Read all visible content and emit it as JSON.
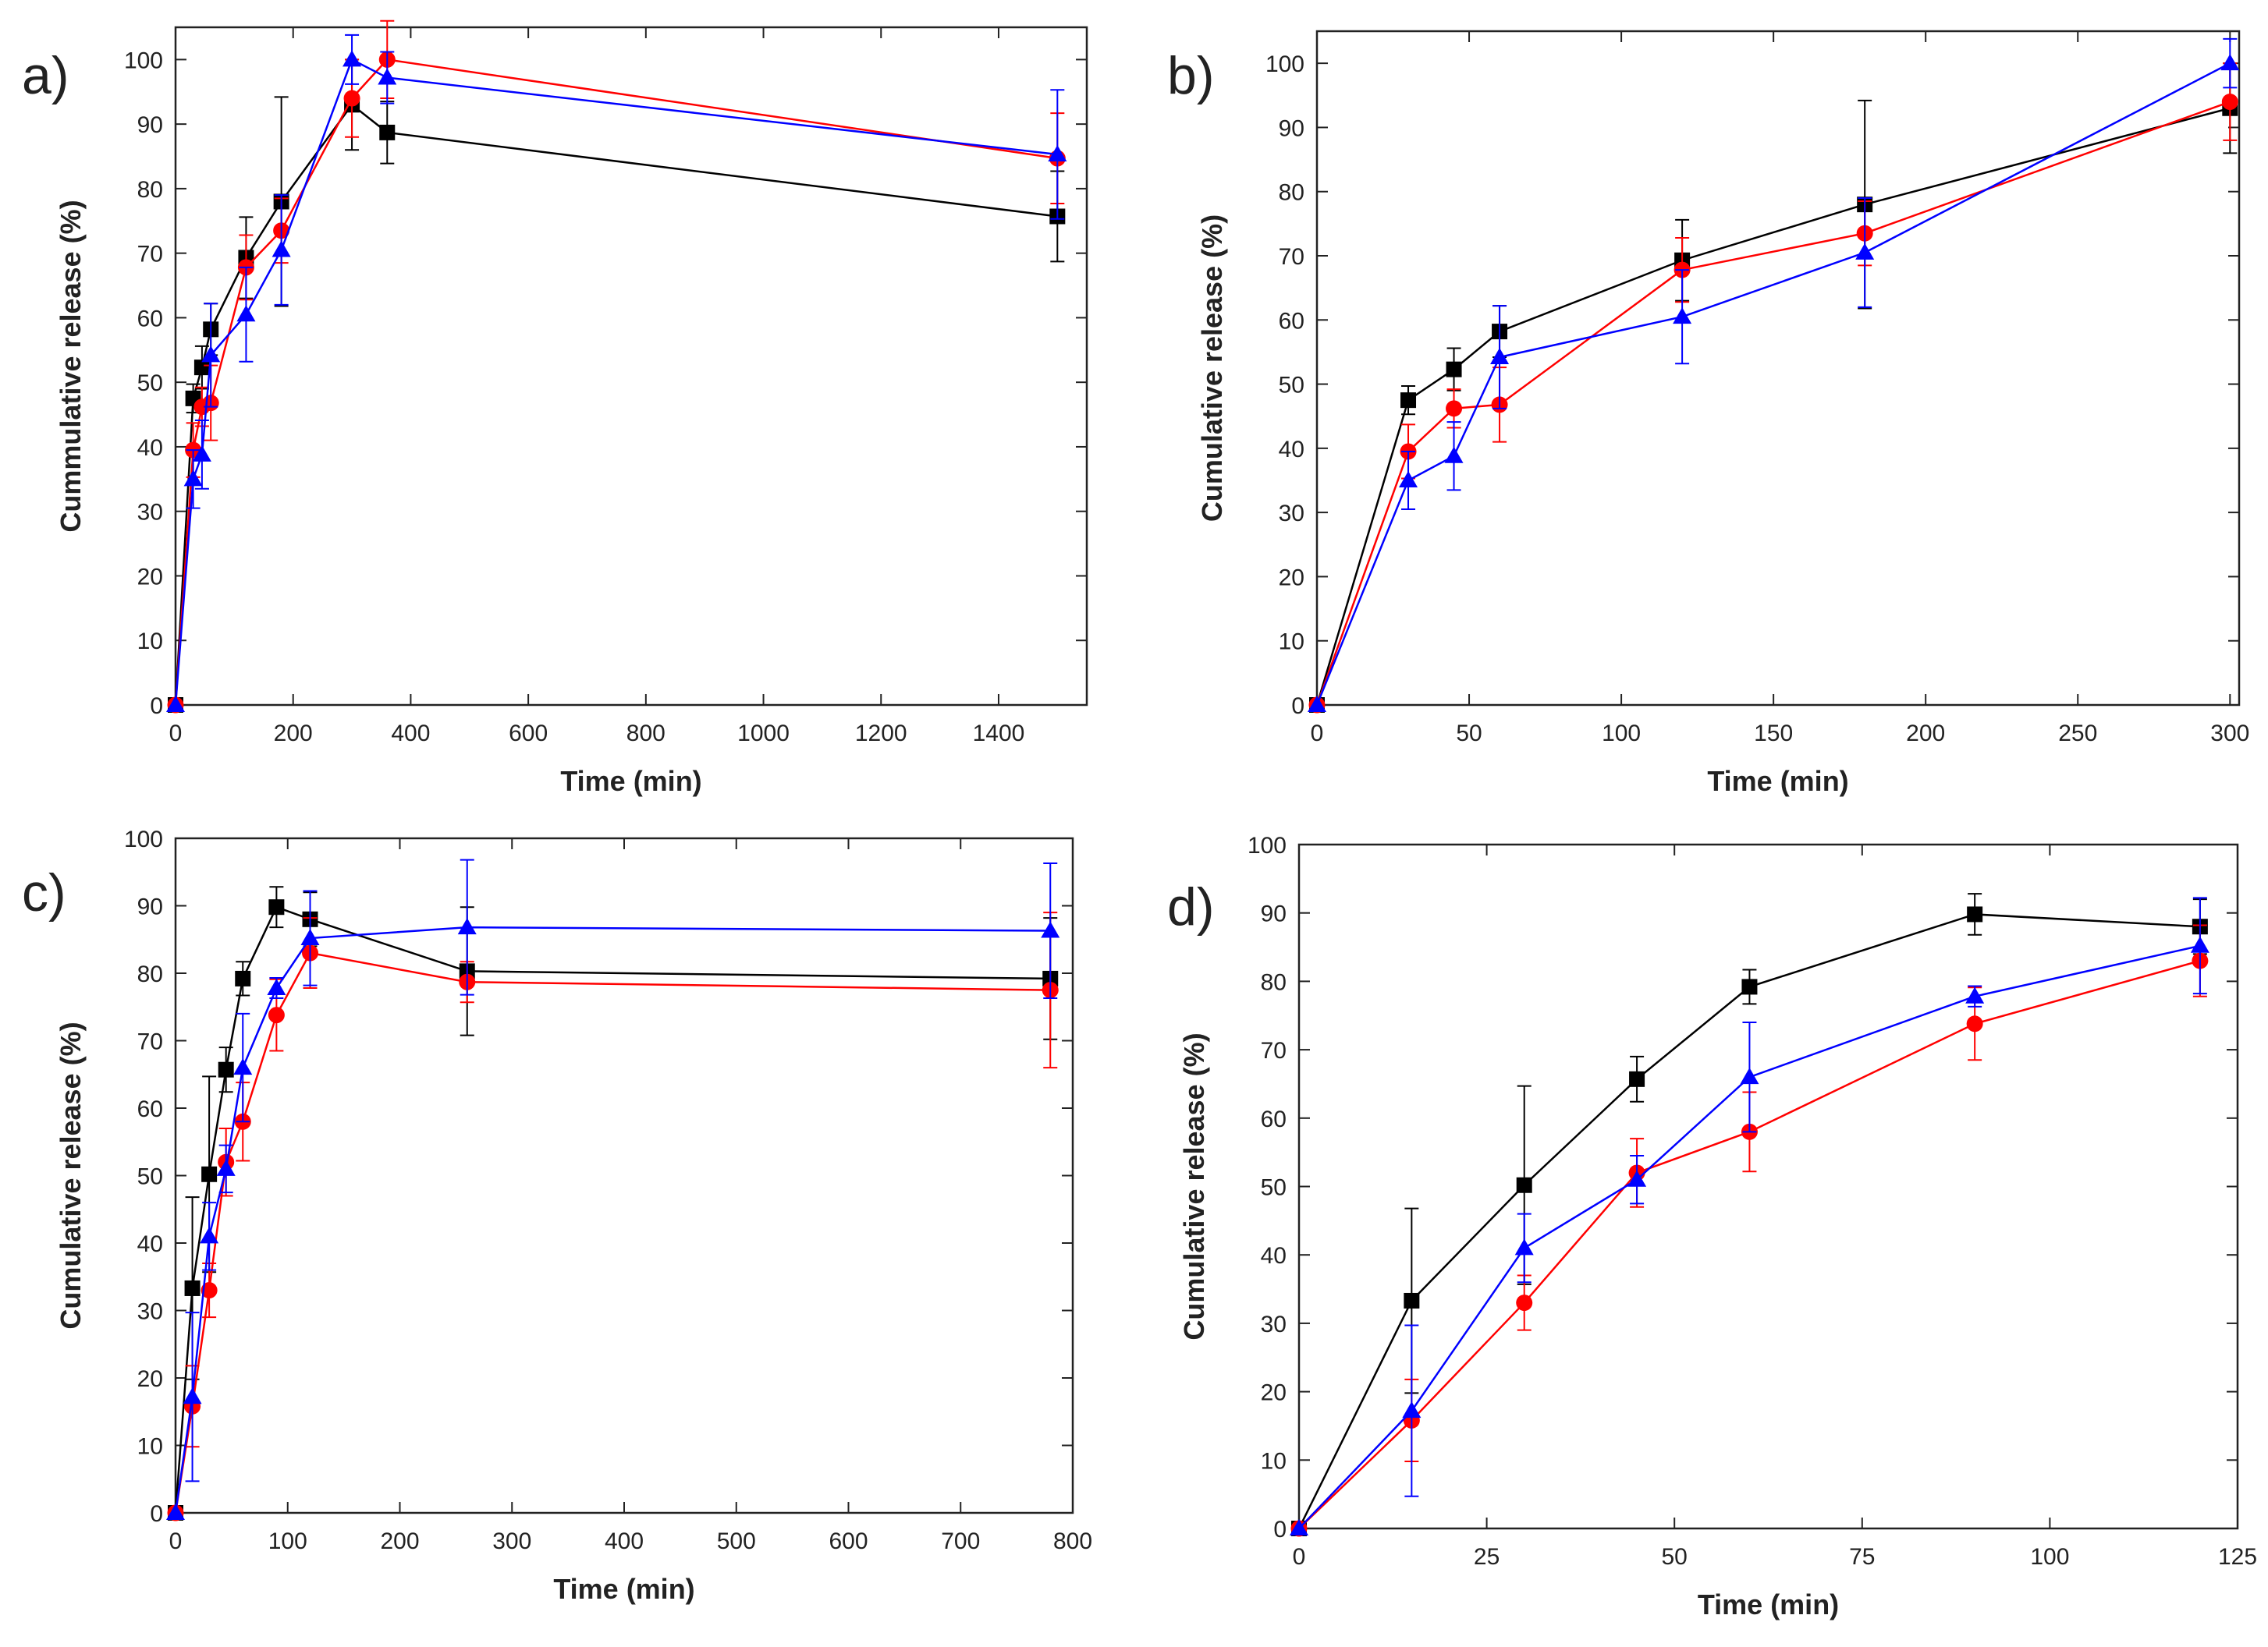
{
  "chart_data": [
    {
      "type": "line",
      "panel_label": "a)",
      "xlabel": "Time (min)",
      "ylabel": "Cummulative release (%)",
      "xlim": [
        0,
        1550
      ],
      "ylim": [
        0,
        105
      ],
      "xticks": [
        0,
        200,
        400,
        600,
        800,
        1000,
        1200,
        1400
      ],
      "yticks": [
        0,
        10,
        20,
        30,
        40,
        50,
        60,
        70,
        80,
        90,
        100
      ],
      "grid": false,
      "series": [
        {
          "color": "#000000",
          "marker": "square",
          "x": [
            0,
            30,
            45,
            60,
            120,
            180,
            300,
            360,
            1500
          ],
          "y": [
            0,
            47.5,
            52.3,
            58.2,
            69.3,
            78.0,
            93.0,
            88.7,
            75.7
          ],
          "err": [
            0,
            2.2,
            3.3,
            4.0,
            6.3,
            16.2,
            7.0,
            4.8,
            7.0
          ]
        },
        {
          "color": "#ff0000",
          "marker": "circle",
          "x": [
            0,
            30,
            45,
            60,
            120,
            180,
            300,
            360,
            1500
          ],
          "y": [
            0,
            39.5,
            46.2,
            46.8,
            67.8,
            73.5,
            94.0,
            100.0,
            84.7
          ],
          "err": [
            0,
            4.2,
            3.0,
            5.8,
            5.0,
            5.0,
            6.0,
            6.0,
            7.0
          ]
        },
        {
          "color": "#0000ff",
          "marker": "triangle",
          "x": [
            0,
            30,
            45,
            60,
            120,
            180,
            300,
            360,
            1500
          ],
          "y": [
            0,
            35.0,
            38.8,
            54.2,
            60.5,
            70.5,
            100.0,
            97.2,
            85.3
          ],
          "err": [
            0,
            4.5,
            5.3,
            8.0,
            7.3,
            8.5,
            3.8,
            4.0,
            10.0
          ]
        }
      ]
    },
    {
      "type": "line",
      "panel_label": "b)",
      "xlabel": "Time (min)",
      "ylabel": "Cumulative release (%)",
      "xlim": [
        0,
        303
      ],
      "ylim": [
        0,
        105
      ],
      "xticks": [
        0,
        50,
        100,
        150,
        200,
        250,
        300
      ],
      "yticks": [
        0,
        10,
        20,
        30,
        40,
        50,
        60,
        70,
        80,
        90,
        100
      ],
      "grid": false,
      "series": [
        {
          "color": "#000000",
          "marker": "square",
          "x": [
            0,
            30,
            45,
            60,
            120,
            180,
            300
          ],
          "y": [
            0,
            47.5,
            52.3,
            58.2,
            69.3,
            78.0,
            93.0
          ],
          "err": [
            0,
            2.2,
            3.3,
            4.0,
            6.3,
            16.2,
            7.0
          ]
        },
        {
          "color": "#ff0000",
          "marker": "circle",
          "x": [
            0,
            30,
            45,
            60,
            120,
            180,
            300
          ],
          "y": [
            0,
            39.5,
            46.2,
            46.8,
            67.8,
            73.5,
            94.0
          ],
          "err": [
            0,
            4.2,
            3.0,
            5.8,
            5.0,
            5.0,
            6.0
          ]
        },
        {
          "color": "#0000ff",
          "marker": "triangle",
          "x": [
            0,
            30,
            45,
            60,
            120,
            180,
            300
          ],
          "y": [
            0,
            35.0,
            38.8,
            54.2,
            60.5,
            70.5,
            100.0
          ],
          "err": [
            0,
            4.5,
            5.3,
            8.0,
            7.3,
            8.5,
            3.8
          ]
        }
      ]
    },
    {
      "type": "line",
      "panel_label": "c)",
      "xlabel": "Time (min)",
      "ylabel": "Cumulative release (%)",
      "xlim": [
        0,
        800
      ],
      "ylim": [
        0,
        100
      ],
      "xticks": [
        0,
        100,
        200,
        300,
        400,
        500,
        600,
        700,
        800
      ],
      "yticks": [
        0,
        10,
        20,
        30,
        40,
        50,
        60,
        70,
        80,
        90,
        100
      ],
      "grid": false,
      "series": [
        {
          "color": "#000000",
          "marker": "square",
          "x": [
            0,
            15,
            30,
            45,
            60,
            90,
            120,
            260,
            780
          ],
          "y": [
            0,
            33.3,
            50.2,
            65.7,
            79.2,
            89.8,
            88.0,
            80.3,
            79.2
          ],
          "err": [
            0,
            13.5,
            14.5,
            3.3,
            2.5,
            3.0,
            4.0,
            9.5,
            9.0
          ]
        },
        {
          "color": "#ff0000",
          "marker": "circle",
          "x": [
            0,
            15,
            30,
            45,
            60,
            90,
            120,
            260,
            780
          ],
          "y": [
            0,
            15.8,
            33.0,
            52.0,
            58.0,
            73.8,
            83.0,
            78.7,
            77.5
          ],
          "err": [
            0,
            6.0,
            4.0,
            5.0,
            5.8,
            5.3,
            5.2,
            3.0,
            11.5
          ]
        },
        {
          "color": "#0000ff",
          "marker": "triangle",
          "x": [
            0,
            15,
            30,
            45,
            60,
            90,
            120,
            260,
            780
          ],
          "y": [
            0,
            17.2,
            41.0,
            51.0,
            66.0,
            77.8,
            85.2,
            86.8,
            86.3
          ],
          "err": [
            0,
            12.5,
            5.0,
            3.5,
            8.0,
            1.5,
            7.0,
            10.0,
            10.0
          ]
        }
      ]
    },
    {
      "type": "line",
      "panel_label": "d)",
      "xlabel": "Time (min)",
      "ylabel": "Cumulative release (%)",
      "xlim": [
        0,
        125
      ],
      "ylim": [
        0,
        100
      ],
      "xticks": [
        0,
        25,
        50,
        75,
        100,
        125
      ],
      "yticks": [
        0,
        10,
        20,
        30,
        40,
        50,
        60,
        70,
        80,
        90,
        100
      ],
      "grid": false,
      "series": [
        {
          "color": "#000000",
          "marker": "square",
          "x": [
            0,
            15,
            30,
            45,
            60,
            90,
            120
          ],
          "y": [
            0,
            33.3,
            50.2,
            65.7,
            79.2,
            89.8,
            88.0
          ],
          "err": [
            0,
            13.5,
            14.5,
            3.3,
            2.5,
            3.0,
            4.0
          ]
        },
        {
          "color": "#ff0000",
          "marker": "circle",
          "x": [
            0,
            15,
            30,
            45,
            60,
            90,
            120
          ],
          "y": [
            0,
            15.8,
            33.0,
            52.0,
            58.0,
            73.8,
            83.0
          ],
          "err": [
            0,
            6.0,
            4.0,
            5.0,
            5.8,
            5.3,
            5.2
          ]
        },
        {
          "color": "#0000ff",
          "marker": "triangle",
          "x": [
            0,
            15,
            30,
            45,
            60,
            90,
            120
          ],
          "y": [
            0,
            17.2,
            41.0,
            51.0,
            66.0,
            77.8,
            85.2
          ],
          "err": [
            0,
            12.5,
            5.0,
            3.5,
            8.0,
            1.5,
            7.0
          ]
        }
      ]
    }
  ]
}
